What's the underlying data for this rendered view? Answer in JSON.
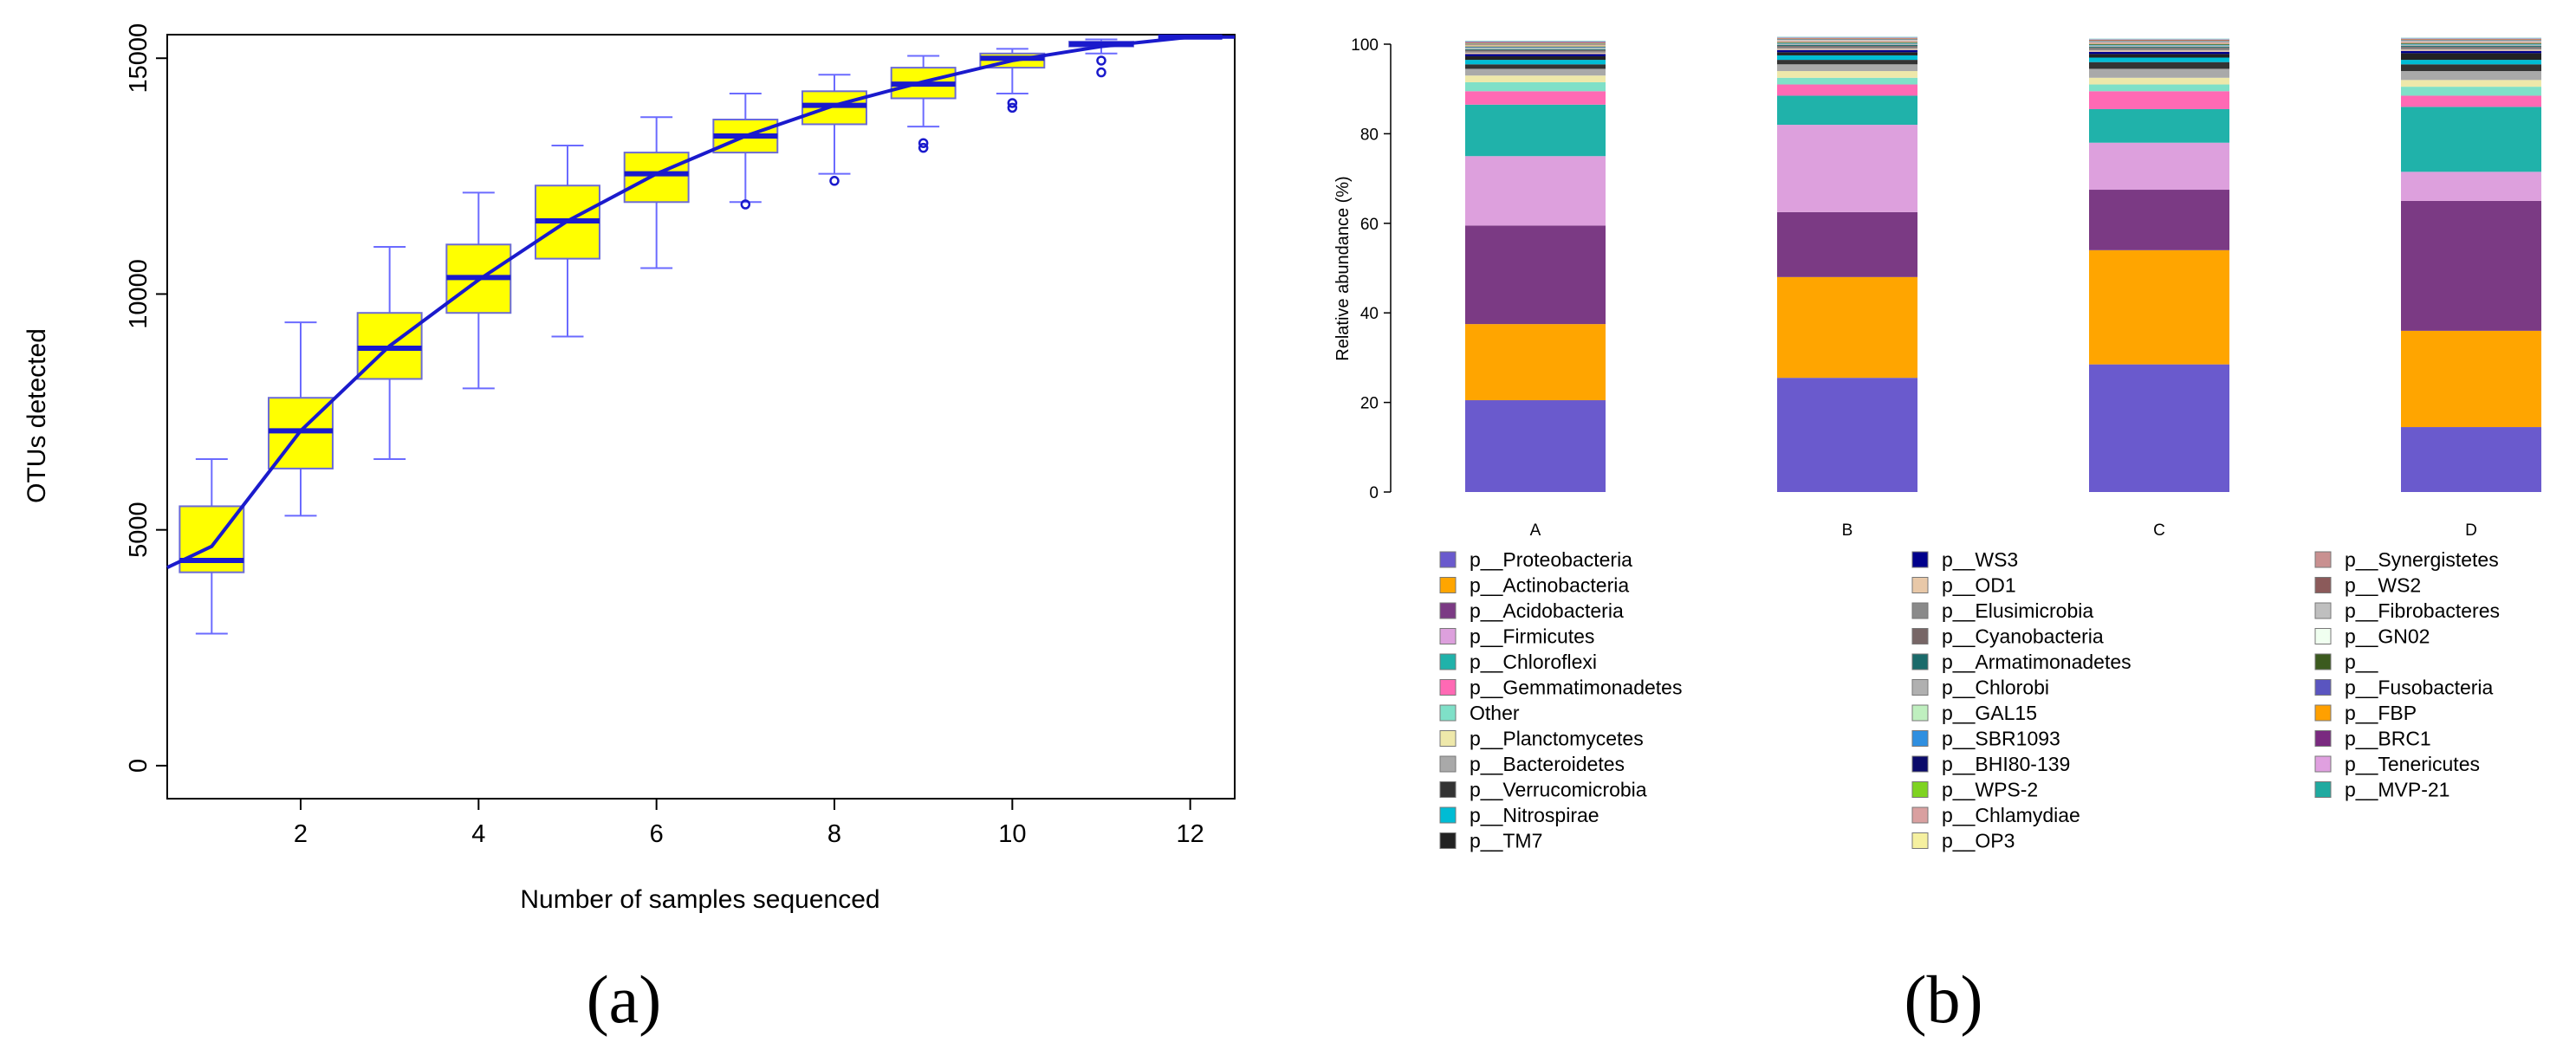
{
  "chart_data": [
    {
      "type": "box",
      "panel_label": "(a)",
      "xlabel": "Number of samples sequenced",
      "ylabel": "OTUs detected",
      "xlim": [
        0.5,
        12.5
      ],
      "ylim": [
        -700,
        15500
      ],
      "xticks": [
        2,
        4,
        6,
        8,
        10,
        12
      ],
      "yticks": [
        0,
        5000,
        10000,
        15000
      ],
      "colors": {
        "box_fill": "#ffff00",
        "box_border": "#6b6bd6",
        "median": "#1a1acc",
        "whisker": "#6b6bff",
        "mean_line": "#1a1acc"
      },
      "boxes": [
        {
          "x": 1,
          "min": 2800,
          "q1": 4100,
          "median": 4350,
          "q3": 5500,
          "max": 6500,
          "outliers": []
        },
        {
          "x": 2,
          "min": 5300,
          "q1": 6300,
          "median": 7100,
          "q3": 7800,
          "max": 9400,
          "outliers": []
        },
        {
          "x": 3,
          "min": 6500,
          "q1": 8200,
          "median": 8850,
          "q3": 9600,
          "max": 11000,
          "outliers": []
        },
        {
          "x": 4,
          "min": 8000,
          "q1": 9600,
          "median": 10350,
          "q3": 11050,
          "max": 12150,
          "outliers": []
        },
        {
          "x": 5,
          "min": 9100,
          "q1": 10750,
          "median": 11550,
          "q3": 12300,
          "max": 13150,
          "outliers": []
        },
        {
          "x": 6,
          "min": 10550,
          "q1": 11950,
          "median": 12550,
          "q3": 13000,
          "max": 13750,
          "outliers": []
        },
        {
          "x": 7,
          "min": 11950,
          "q1": 13000,
          "median": 13350,
          "q3": 13700,
          "max": 14250,
          "outliers": [
            11900
          ]
        },
        {
          "x": 8,
          "min": 12550,
          "q1": 13600,
          "median": 14000,
          "q3": 14300,
          "max": 14650,
          "outliers": [
            12400
          ]
        },
        {
          "x": 9,
          "min": 13550,
          "q1": 14150,
          "median": 14450,
          "q3": 14800,
          "max": 15050,
          "outliers": [
            13200,
            13100
          ]
        },
        {
          "x": 10,
          "min": 14250,
          "q1": 14800,
          "median": 15000,
          "q3": 15100,
          "max": 15200,
          "outliers": [
            14050,
            13950
          ]
        },
        {
          "x": 11,
          "min": 15100,
          "q1": 15250,
          "median": 15300,
          "q3": 15350,
          "max": 15400,
          "outliers": [
            14950,
            14700
          ]
        },
        {
          "x": 12,
          "min": 15450,
          "q1": 15450,
          "median": 15450,
          "q3": 15450,
          "max": 15450,
          "outliers": []
        }
      ],
      "mean_line": {
        "x": [
          0.5,
          1,
          2,
          3,
          4,
          5,
          6,
          7,
          8,
          9,
          10,
          11,
          12,
          12.5
        ],
        "y": [
          4200,
          4650,
          7100,
          8900,
          10300,
          11550,
          12550,
          13350,
          14000,
          14500,
          14950,
          15250,
          15450,
          15450
        ]
      }
    },
    {
      "type": "stacked_bar",
      "panel_label": "(b)",
      "ylabel": "Relative abundance (%)",
      "ylim": [
        0,
        100
      ],
      "yticks": [
        0,
        20,
        40,
        60,
        80,
        100
      ],
      "categories": [
        "A",
        "B",
        "C",
        "D"
      ],
      "series": [
        {
          "name": "p__Proteobacteria",
          "color": "#6a5acd",
          "values": [
            20.5,
            25.5,
            28.5,
            14.5
          ]
        },
        {
          "name": "p__Actinobacteria",
          "color": "#ffa500",
          "values": [
            17.0,
            22.5,
            25.5,
            21.5
          ]
        },
        {
          "name": "p__Acidobacteria",
          "color": "#7b3a84",
          "values": [
            22.0,
            14.5,
            13.5,
            29.0
          ]
        },
        {
          "name": "p__Firmicutes",
          "color": "#dda0dd",
          "values": [
            15.5,
            19.5,
            10.5,
            6.5
          ]
        },
        {
          "name": "p__Chloroflexi",
          "color": "#20b2aa",
          "values": [
            11.5,
            6.5,
            7.5,
            14.5
          ]
        },
        {
          "name": "p__Gemmatimonadetes",
          "color": "#ff69b4",
          "values": [
            3.0,
            2.5,
            4.0,
            2.5
          ]
        },
        {
          "name": "Other",
          "color": "#7fe0c8",
          "values": [
            2.0,
            1.5,
            1.5,
            2.0
          ]
        },
        {
          "name": "p__Planctomycetes",
          "color": "#eee8aa",
          "values": [
            1.5,
            1.5,
            1.5,
            1.5
          ]
        },
        {
          "name": "p__Bacteroidetes",
          "color": "#a9a9a9",
          "values": [
            1.5,
            1.5,
            2.0,
            2.0
          ]
        },
        {
          "name": "p__Verrucomicrobia",
          "color": "#333333",
          "values": [
            1.0,
            1.0,
            1.5,
            1.5
          ]
        },
        {
          "name": "p__Nitrospirae",
          "color": "#00bcd4",
          "values": [
            1.0,
            1.0,
            1.0,
            1.0
          ]
        },
        {
          "name": "p__TM7",
          "color": "#222222",
          "values": [
            0.8,
            0.7,
            0.8,
            1.5
          ]
        },
        {
          "name": "p__WS3",
          "color": "#00008b",
          "values": [
            0.5,
            0.5,
            0.5,
            0.5
          ]
        },
        {
          "name": "p__OD1",
          "color": "#e8c8a8",
          "values": [
            0.3,
            0.3,
            0.3,
            0.3
          ]
        },
        {
          "name": "p__Elusimicrobia",
          "color": "#8a8a8a",
          "values": [
            0.3,
            0.3,
            0.3,
            0.3
          ]
        },
        {
          "name": "p__Cyanobacteria",
          "color": "#776666",
          "values": [
            0.3,
            0.3,
            0.3,
            0.3
          ]
        },
        {
          "name": "p__Armatimonadetes",
          "color": "#1a6a6a",
          "values": [
            0.2,
            0.2,
            0.2,
            0.2
          ]
        },
        {
          "name": "p__Chlorobi",
          "color": "#b0b0b0",
          "values": [
            0.2,
            0.2,
            0.2,
            0.2
          ]
        },
        {
          "name": "p__GAL15",
          "color": "#bfefbf",
          "values": [
            0.1,
            0.1,
            0.1,
            0.1
          ]
        },
        {
          "name": "p__SBR1093",
          "color": "#2f8fe0",
          "values": [
            0.1,
            0.1,
            0.1,
            0.1
          ]
        },
        {
          "name": "p__BHI80-139",
          "color": "#0a0a6a",
          "values": [
            0.1,
            0.1,
            0.1,
            0.1
          ]
        },
        {
          "name": "p__WPS-2",
          "color": "#7ed321",
          "values": [
            0.1,
            0.1,
            0.1,
            0.1
          ]
        },
        {
          "name": "p__Chlamydiae",
          "color": "#d9a0a0",
          "values": [
            0.1,
            0.1,
            0.1,
            0.1
          ]
        },
        {
          "name": "p__OP3",
          "color": "#f5f0a0",
          "values": [
            0.1,
            0.1,
            0.1,
            0.1
          ]
        },
        {
          "name": "p__Synergistetes",
          "color": "#c99090",
          "values": [
            0.1,
            0.1,
            0.1,
            0.1
          ]
        },
        {
          "name": "p__WS2",
          "color": "#8b5a5a",
          "values": [
            0.1,
            0.1,
            0.1,
            0.1
          ]
        },
        {
          "name": "p__Fibrobacteres",
          "color": "#bfbfbf",
          "values": [
            0.1,
            0.1,
            0.1,
            0.1
          ]
        },
        {
          "name": "p__GN02",
          "color": "#f0fff0",
          "values": [
            0.1,
            0.1,
            0.1,
            0.1
          ]
        },
        {
          "name": "p__",
          "color": "#3b5a1e",
          "values": [
            0.1,
            0.1,
            0.1,
            0.1
          ]
        },
        {
          "name": "p__Fusobacteria",
          "color": "#5a55c0",
          "values": [
            0.1,
            0.1,
            0.1,
            0.1
          ]
        },
        {
          "name": "p__FBP",
          "color": "#ffa000",
          "values": [
            0.1,
            0.1,
            0.1,
            0.1
          ]
        },
        {
          "name": "p__BRC1",
          "color": "#7a2a80",
          "values": [
            0.1,
            0.1,
            0.1,
            0.1
          ]
        },
        {
          "name": "p__Tenericutes",
          "color": "#e0a0e0",
          "values": [
            0.1,
            0.1,
            0.1,
            0.1
          ]
        },
        {
          "name": "p__MVP-21",
          "color": "#20aaa0",
          "values": [
            0.1,
            0.1,
            0.1,
            0.1
          ]
        }
      ],
      "legend_columns": [
        [
          "p__Proteobacteria",
          "p__Actinobacteria",
          "p__Acidobacteria",
          "p__Firmicutes",
          "p__Chloroflexi",
          "p__Gemmatimonadetes",
          "Other",
          "p__Planctomycetes",
          "p__Bacteroidetes",
          "p__Verrucomicrobia",
          "p__Nitrospirae",
          "p__TM7"
        ],
        [
          "p__WS3",
          "p__OD1",
          "p__Elusimicrobia",
          "p__Cyanobacteria",
          "p__Armatimonadetes",
          "p__Chlorobi",
          "p__GAL15",
          "p__SBR1093",
          "p__BHI80-139",
          "p__WPS-2",
          "p__Chlamydiae",
          "p__OP3"
        ],
        [
          "p__Synergistetes",
          "p__WS2",
          "p__Fibrobacteres",
          "p__GN02",
          "p__",
          "p__Fusobacteria",
          "p__FBP",
          "p__BRC1",
          "p__Tenericutes",
          "p__MVP-21"
        ]
      ]
    }
  ]
}
